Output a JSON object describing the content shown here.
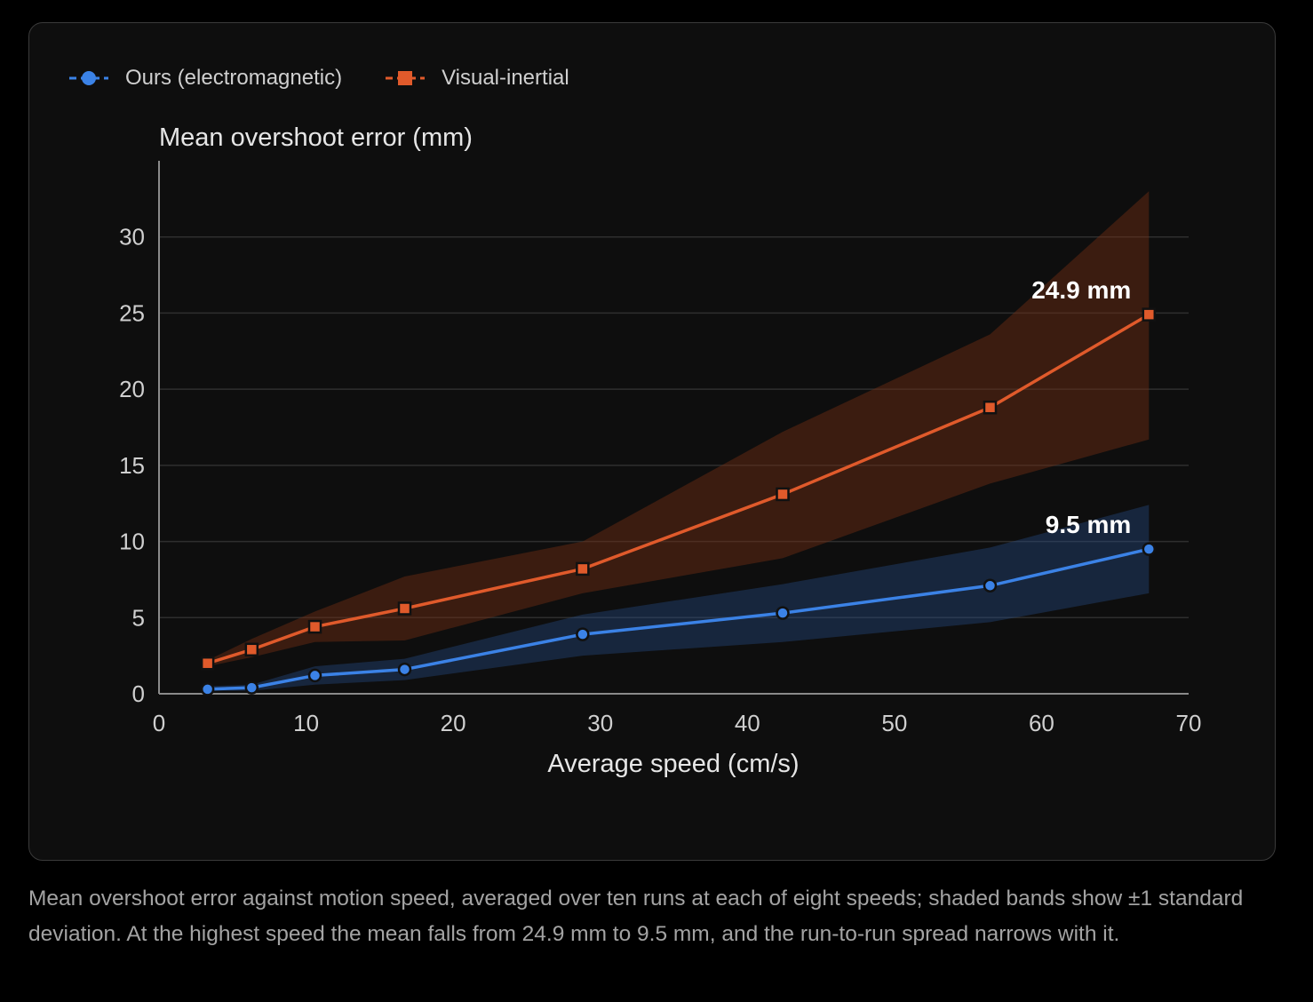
{
  "chart_data": {
    "type": "line",
    "title": "",
    "xlabel": "Average speed (cm/s)",
    "ylabel": "Mean overshoot error (mm)",
    "xlim": [
      0,
      70
    ],
    "ylim": [
      0,
      35
    ],
    "xticks": [
      0,
      10,
      20,
      30,
      40,
      50,
      60,
      70
    ],
    "yticks": [
      0,
      5,
      10,
      15,
      20,
      25,
      30
    ],
    "grid": "horizontal",
    "legend_position": "top-left",
    "x": [
      3.3,
      6.3,
      10.6,
      16.7,
      28.8,
      42.4,
      56.5,
      67.3
    ],
    "series": [
      {
        "name": "Ours (electromagnetic)",
        "color": "#3b82e6",
        "marker": "circle",
        "values": [
          0.3,
          0.4,
          1.2,
          1.6,
          3.9,
          5.3,
          7.1,
          9.5
        ],
        "band_lower": [
          0.2,
          0.2,
          0.6,
          0.9,
          2.5,
          3.4,
          4.7,
          6.6
        ],
        "band_upper": [
          0.5,
          0.6,
          1.8,
          2.3,
          5.2,
          7.2,
          9.6,
          12.4
        ],
        "end_label": "9.5 mm"
      },
      {
        "name": "Visual-inertial",
        "color": "#e05a2b",
        "marker": "square",
        "values": [
          2.0,
          2.9,
          4.4,
          5.6,
          8.2,
          13.1,
          18.8,
          24.9
        ],
        "band_lower": [
          1.8,
          2.4,
          3.4,
          3.5,
          6.6,
          8.9,
          13.8,
          16.7
        ],
        "band_upper": [
          2.2,
          3.6,
          5.4,
          7.7,
          10.0,
          17.2,
          23.6,
          33.0
        ],
        "end_label": "24.9 mm"
      }
    ]
  },
  "caption": "Mean overshoot error against motion speed, averaged over ten runs at each of eight speeds; shaded bands show ±1 standard deviation. At the highest speed the mean falls from 24.9 mm to 9.5 mm, and the run-to-run spread narrows with it."
}
